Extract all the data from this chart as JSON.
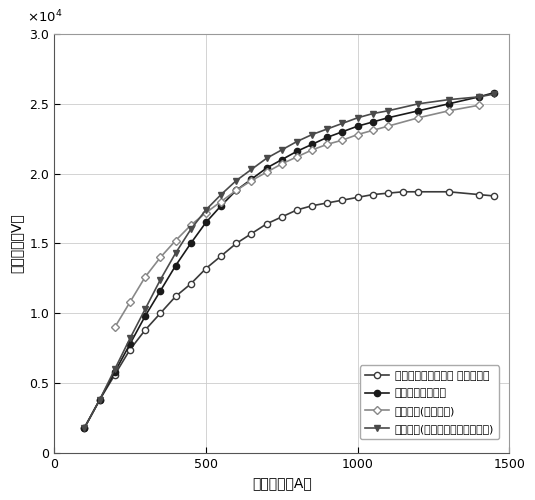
{
  "xlabel": "励磁电流（A）",
  "ylabel": "空载电压（V）",
  "xlim": [
    0,
    1500
  ],
  "ylim": [
    0,
    30000
  ],
  "xticks": [
    0,
    500,
    1000,
    1500
  ],
  "yticks": [
    0,
    5000,
    10000,
    15000,
    20000,
    25000,
    30000
  ],
  "series1_label": "空载曲线（型式试验 剩磁折算）",
  "series1_x": [
    100,
    150,
    200,
    250,
    300,
    350,
    400,
    450,
    500,
    550,
    600,
    650,
    700,
    750,
    800,
    850,
    900,
    950,
    1000,
    1050,
    1100,
    1150,
    1200,
    1300,
    1400,
    1450
  ],
  "series1_y": [
    1800,
    3800,
    5600,
    7400,
    8800,
    10000,
    11200,
    12100,
    13200,
    14100,
    15000,
    15700,
    16400,
    16900,
    17400,
    17700,
    17900,
    18100,
    18300,
    18500,
    18600,
    18700,
    18700,
    18700,
    18500,
    18400
  ],
  "series1_color": "#3a3a3a",
  "series1_marker": "o",
  "series1_markerfill": "white",
  "series2_label": "空载曲线（惭速）",
  "series2_x": [
    100,
    150,
    200,
    250,
    300,
    350,
    400,
    450,
    500,
    550,
    600,
    650,
    700,
    750,
    800,
    850,
    900,
    950,
    1000,
    1050,
    1100,
    1200,
    1300,
    1400,
    1450
  ],
  "series2_y": [
    1800,
    3800,
    5800,
    7800,
    9800,
    11600,
    13400,
    15000,
    16500,
    17700,
    18800,
    19600,
    20400,
    21000,
    21600,
    22100,
    22600,
    23000,
    23400,
    23700,
    24000,
    24500,
    25000,
    25500,
    25800
  ],
  "series2_color": "#1a1a1a",
  "series2_marker": "o",
  "series2_markerfill": "#1a1a1a",
  "series3_label": "空载曲线(惭速折算)",
  "series3_x": [
    200,
    250,
    300,
    350,
    400,
    450,
    500,
    550,
    600,
    650,
    700,
    750,
    800,
    850,
    900,
    950,
    1000,
    1050,
    1100,
    1200,
    1300,
    1400
  ],
  "series3_y": [
    9000,
    10800,
    12600,
    14000,
    15200,
    16300,
    17200,
    18000,
    18800,
    19500,
    20100,
    20700,
    21200,
    21700,
    22100,
    22400,
    22800,
    23100,
    23400,
    24000,
    24500,
    24900
  ],
  "series3_color": "#888888",
  "series3_marker": "D",
  "series3_markerfill": "white",
  "series4_label": "空载曲线(惭速、剩磁、去磁折算)",
  "series4_x": [
    100,
    150,
    200,
    250,
    300,
    350,
    400,
    450,
    500,
    550,
    600,
    650,
    700,
    750,
    800,
    850,
    900,
    950,
    1000,
    1050,
    1100,
    1200,
    1300,
    1400,
    1450
  ],
  "series4_y": [
    1800,
    3800,
    6000,
    8200,
    10300,
    12400,
    14300,
    16000,
    17400,
    18500,
    19500,
    20300,
    21100,
    21700,
    22300,
    22800,
    23200,
    23600,
    24000,
    24300,
    24500,
    25000,
    25300,
    25500,
    25700
  ],
  "series4_color": "#4a4a4a",
  "series4_marker": "v",
  "series4_markerfill": "#4a4a4a",
  "background_color": "#ffffff",
  "grid_color": "#cccccc"
}
